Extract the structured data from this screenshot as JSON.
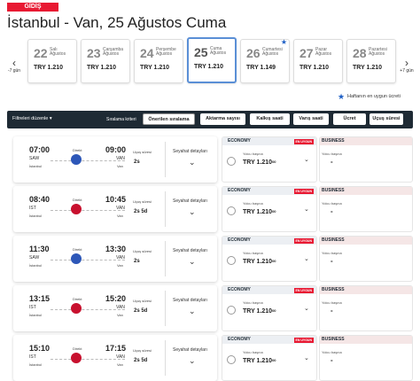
{
  "badge": "GİDİŞ",
  "route_title": "İstanbul - Van, 25 Ağustos Cuma",
  "nav": {
    "prev_label": "-7 gün",
    "next_label": "+7 gün"
  },
  "dates": [
    {
      "day": "22",
      "name1": "Salı",
      "name2": "Ağustos",
      "price": "TRY 1.210",
      "active": false,
      "star": false
    },
    {
      "day": "23",
      "name1": "Çarşamba",
      "name2": "Ağustos",
      "price": "TRY 1.210",
      "active": false,
      "star": false
    },
    {
      "day": "24",
      "name1": "Perşembe",
      "name2": "Ağustos",
      "price": "TRY 1.210",
      "active": false,
      "star": false
    },
    {
      "day": "25",
      "name1": "Cuma",
      "name2": "Ağustos",
      "price": "TRY 1.210",
      "active": true,
      "star": false
    },
    {
      "day": "26",
      "name1": "Cumartesi",
      "name2": "Ağustos",
      "price": "TRY 1.149",
      "active": false,
      "star": true
    },
    {
      "day": "27",
      "name1": "Pazar",
      "name2": "Ağustos",
      "price": "TRY 1.210",
      "active": false,
      "star": false
    },
    {
      "day": "28",
      "name1": "Pazartesi",
      "name2": "Ağustos",
      "price": "TRY 1.210",
      "active": false,
      "star": false
    }
  ],
  "legend": "Haftanın en uygun ücreti",
  "filter": {
    "edit_label": "Filtreleri düzenle ▾",
    "sort_label": "Sıralama kriteri",
    "buttons": [
      "Önerilen sıralama",
      "Aktarma sayısı",
      "Kalkış saati",
      "Varış saati",
      "Ücret",
      "Uçuş süresi"
    ]
  },
  "labels": {
    "direct": "Direkt",
    "duration": "Uçuş süresi",
    "details": "Seyahat detayları",
    "economy": "ECONOMY",
    "business": "BUSINESS",
    "cheapest": "EN UYGUN",
    "per_person": "Yolcu başına",
    "dash": "-"
  },
  "flights": [
    {
      "dep_time": "07:00",
      "dep_code": "SAW",
      "dep_city": "İstanbul",
      "arr_time": "09:00",
      "arr_code": "VAN",
      "arr_city": "Van",
      "duration": "2s",
      "airline": "blue",
      "economy_price": "TRY 1.210",
      "economy_cents": "00"
    },
    {
      "dep_time": "08:40",
      "dep_code": "IST",
      "dep_city": "İstanbul",
      "arr_time": "10:45",
      "arr_code": "VAN",
      "arr_city": "Van",
      "duration": "2s 5d",
      "airline": "red",
      "economy_price": "TRY 1.210",
      "economy_cents": "00"
    },
    {
      "dep_time": "11:30",
      "dep_code": "SAW",
      "dep_city": "İstanbul",
      "arr_time": "13:30",
      "arr_code": "VAN",
      "arr_city": "Van",
      "duration": "2s",
      "airline": "blue",
      "economy_price": "TRY 1.210",
      "economy_cents": "00"
    },
    {
      "dep_time": "13:15",
      "dep_code": "IST",
      "dep_city": "İstanbul",
      "arr_time": "15:20",
      "arr_code": "VAN",
      "arr_city": "Van",
      "duration": "2s 5d",
      "airline": "red",
      "economy_price": "TRY 1.210",
      "economy_cents": "00"
    },
    {
      "dep_time": "15:10",
      "dep_code": "IST",
      "dep_city": "İstanbul",
      "arr_time": "17:15",
      "arr_code": "VAN",
      "arr_city": "Van",
      "duration": "2s 5d",
      "airline": "red",
      "economy_price": "TRY 1.210",
      "economy_cents": "00"
    }
  ],
  "colors": {
    "brand_red": "#e81932",
    "dark_bar": "#1e2a34",
    "star_blue": "#1e5fc5",
    "active_border": "#5a8fd6"
  }
}
